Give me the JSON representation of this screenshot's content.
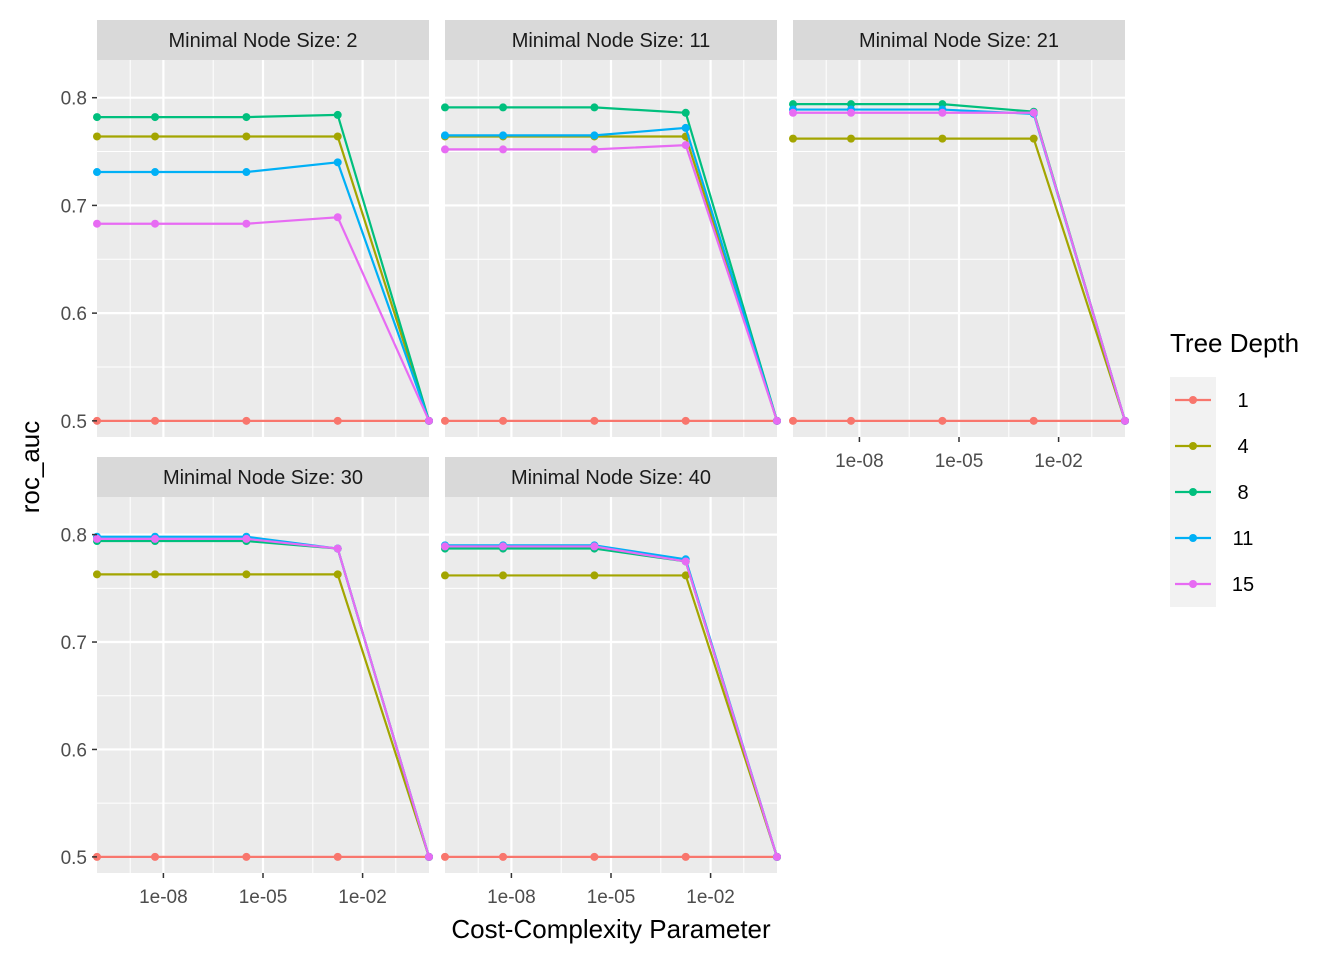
{
  "chart_data": {
    "type": "line",
    "xlabel": "Cost-Complexity Parameter",
    "ylabel": "roc_auc",
    "x_scale": "log10",
    "xlim": [
      1e-10,
      1
    ],
    "ylim": [
      0.485,
      0.835
    ],
    "x_ticks": [
      1e-08,
      1e-05,
      0.01
    ],
    "x_tick_labels": [
      "1e-08",
      "1e-05",
      "1e-02"
    ],
    "y_ticks": [
      0.5,
      0.6,
      0.7,
      0.8
    ],
    "y_tick_labels": [
      "0.5",
      "0.6",
      "0.7",
      "0.8"
    ],
    "grid": true,
    "legend": {
      "title": "Tree Depth",
      "position": "right",
      "entries": [
        {
          "label": "1",
          "color": "#F8766D"
        },
        {
          "label": "4",
          "color": "#A3A500"
        },
        {
          "label": "8",
          "color": "#00BF7D"
        },
        {
          "label": "11",
          "color": "#00B0F6"
        },
        {
          "label": "15",
          "color": "#E76BF3"
        }
      ]
    },
    "x": [
      1e-10,
      5.6e-09,
      3.16e-06,
      0.00178,
      1
    ],
    "panels": [
      {
        "title": "Minimal Node Size: 2",
        "series": [
          {
            "name": "1",
            "values": [
              0.5,
              0.5,
              0.5,
              0.5,
              0.5
            ]
          },
          {
            "name": "4",
            "values": [
              0.764,
              0.764,
              0.764,
              0.764,
              0.5
            ]
          },
          {
            "name": "8",
            "values": [
              0.782,
              0.782,
              0.782,
              0.784,
              0.5
            ]
          },
          {
            "name": "11",
            "values": [
              0.731,
              0.731,
              0.731,
              0.74,
              0.5
            ]
          },
          {
            "name": "15",
            "values": [
              0.683,
              0.683,
              0.683,
              0.689,
              0.5
            ]
          }
        ]
      },
      {
        "title": "Minimal Node Size: 11",
        "series": [
          {
            "name": "1",
            "values": [
              0.5,
              0.5,
              0.5,
              0.5,
              0.5
            ]
          },
          {
            "name": "4",
            "values": [
              0.764,
              0.764,
              0.764,
              0.764,
              0.5
            ]
          },
          {
            "name": "8",
            "values": [
              0.791,
              0.791,
              0.791,
              0.786,
              0.5
            ]
          },
          {
            "name": "11",
            "values": [
              0.765,
              0.765,
              0.765,
              0.772,
              0.5
            ]
          },
          {
            "name": "15",
            "values": [
              0.752,
              0.752,
              0.752,
              0.756,
              0.5
            ]
          }
        ]
      },
      {
        "title": "Minimal Node Size: 21",
        "series": [
          {
            "name": "1",
            "values": [
              0.5,
              0.5,
              0.5,
              0.5,
              0.5
            ]
          },
          {
            "name": "4",
            "values": [
              0.762,
              0.762,
              0.762,
              0.762,
              0.5
            ]
          },
          {
            "name": "8",
            "values": [
              0.794,
              0.794,
              0.794,
              0.787,
              0.5
            ]
          },
          {
            "name": "11",
            "values": [
              0.789,
              0.789,
              0.789,
              0.785,
              0.5
            ]
          },
          {
            "name": "15",
            "values": [
              0.786,
              0.786,
              0.786,
              0.786,
              0.5
            ]
          }
        ]
      },
      {
        "title": "Minimal Node Size: 30",
        "series": [
          {
            "name": "1",
            "values": [
              0.5,
              0.5,
              0.5,
              0.5,
              0.5
            ]
          },
          {
            "name": "4",
            "values": [
              0.763,
              0.763,
              0.763,
              0.763,
              0.5
            ]
          },
          {
            "name": "8",
            "values": [
              0.794,
              0.794,
              0.794,
              0.787,
              0.5
            ]
          },
          {
            "name": "11",
            "values": [
              0.798,
              0.798,
              0.798,
              0.787,
              0.5
            ]
          },
          {
            "name": "15",
            "values": [
              0.796,
              0.796,
              0.796,
              0.787,
              0.5
            ]
          }
        ]
      },
      {
        "title": "Minimal Node Size: 40",
        "series": [
          {
            "name": "1",
            "values": [
              0.5,
              0.5,
              0.5,
              0.5,
              0.5
            ]
          },
          {
            "name": "4",
            "values": [
              0.762,
              0.762,
              0.762,
              0.762,
              0.5
            ]
          },
          {
            "name": "8",
            "values": [
              0.787,
              0.787,
              0.787,
              0.775,
              0.5
            ]
          },
          {
            "name": "11",
            "values": [
              0.79,
              0.79,
              0.79,
              0.777,
              0.5
            ]
          },
          {
            "name": "15",
            "values": [
              0.789,
              0.789,
              0.789,
              0.775,
              0.5
            ]
          }
        ]
      }
    ]
  }
}
